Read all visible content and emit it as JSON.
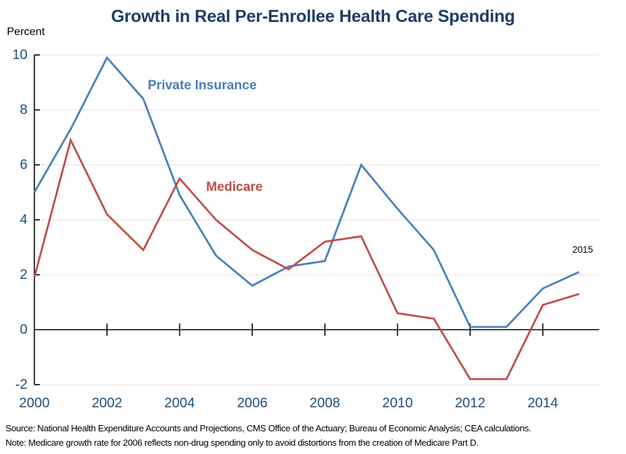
{
  "title": "Growth in Real Per-Enrollee Health Care Spending",
  "y_axis_unit": "Percent",
  "annotation_2015": "2015",
  "series_labels": {
    "private": "Private Insurance",
    "medicare": "Medicare"
  },
  "footer": {
    "source": "Source:  National Health Expenditure Accounts and Projections, CMS Office of the Actuary; Bureau of Economic Analysis; CEA calculations.",
    "note": "Note: Medicare growth rate for 2006 reflects non-drug spending only to avoid distortions from the creation of Medicare Part D."
  },
  "colors": {
    "private": "#4a7ebc",
    "medicare": "#bf4d49",
    "title": "#1f3c64",
    "tick_labels": "#1f4e79",
    "grid": "#ebebeb",
    "axis": "#000000",
    "annotation": "#000000"
  },
  "chart_data": {
    "type": "line",
    "title": "Growth in Real Per-Enrollee Health Care Spending",
    "ylabel": "Percent",
    "x": [
      2000,
      2001,
      2002,
      2003,
      2004,
      2005,
      2006,
      2007,
      2008,
      2009,
      2010,
      2011,
      2012,
      2013,
      2014,
      2015
    ],
    "series": [
      {
        "name": "Private Insurance",
        "values": [
          5.0,
          7.3,
          9.9,
          8.4,
          4.9,
          2.7,
          1.6,
          2.3,
          2.5,
          6.0,
          4.4,
          2.9,
          0.1,
          0.1,
          1.5,
          2.1
        ]
      },
      {
        "name": "Medicare",
        "values": [
          1.9,
          6.9,
          4.2,
          2.9,
          5.5,
          4.0,
          2.9,
          2.2,
          3.2,
          3.4,
          0.6,
          0.4,
          -1.8,
          -1.8,
          0.9,
          1.3
        ]
      }
    ],
    "ylim": [
      -2,
      10
    ],
    "y_ticks": [
      10,
      8,
      6,
      4,
      2,
      0,
      -2
    ],
    "x_ticks": [
      2000,
      2002,
      2004,
      2006,
      2008,
      2010,
      2012,
      2014
    ],
    "grid": "horizontal",
    "legend": "inline-labels"
  }
}
